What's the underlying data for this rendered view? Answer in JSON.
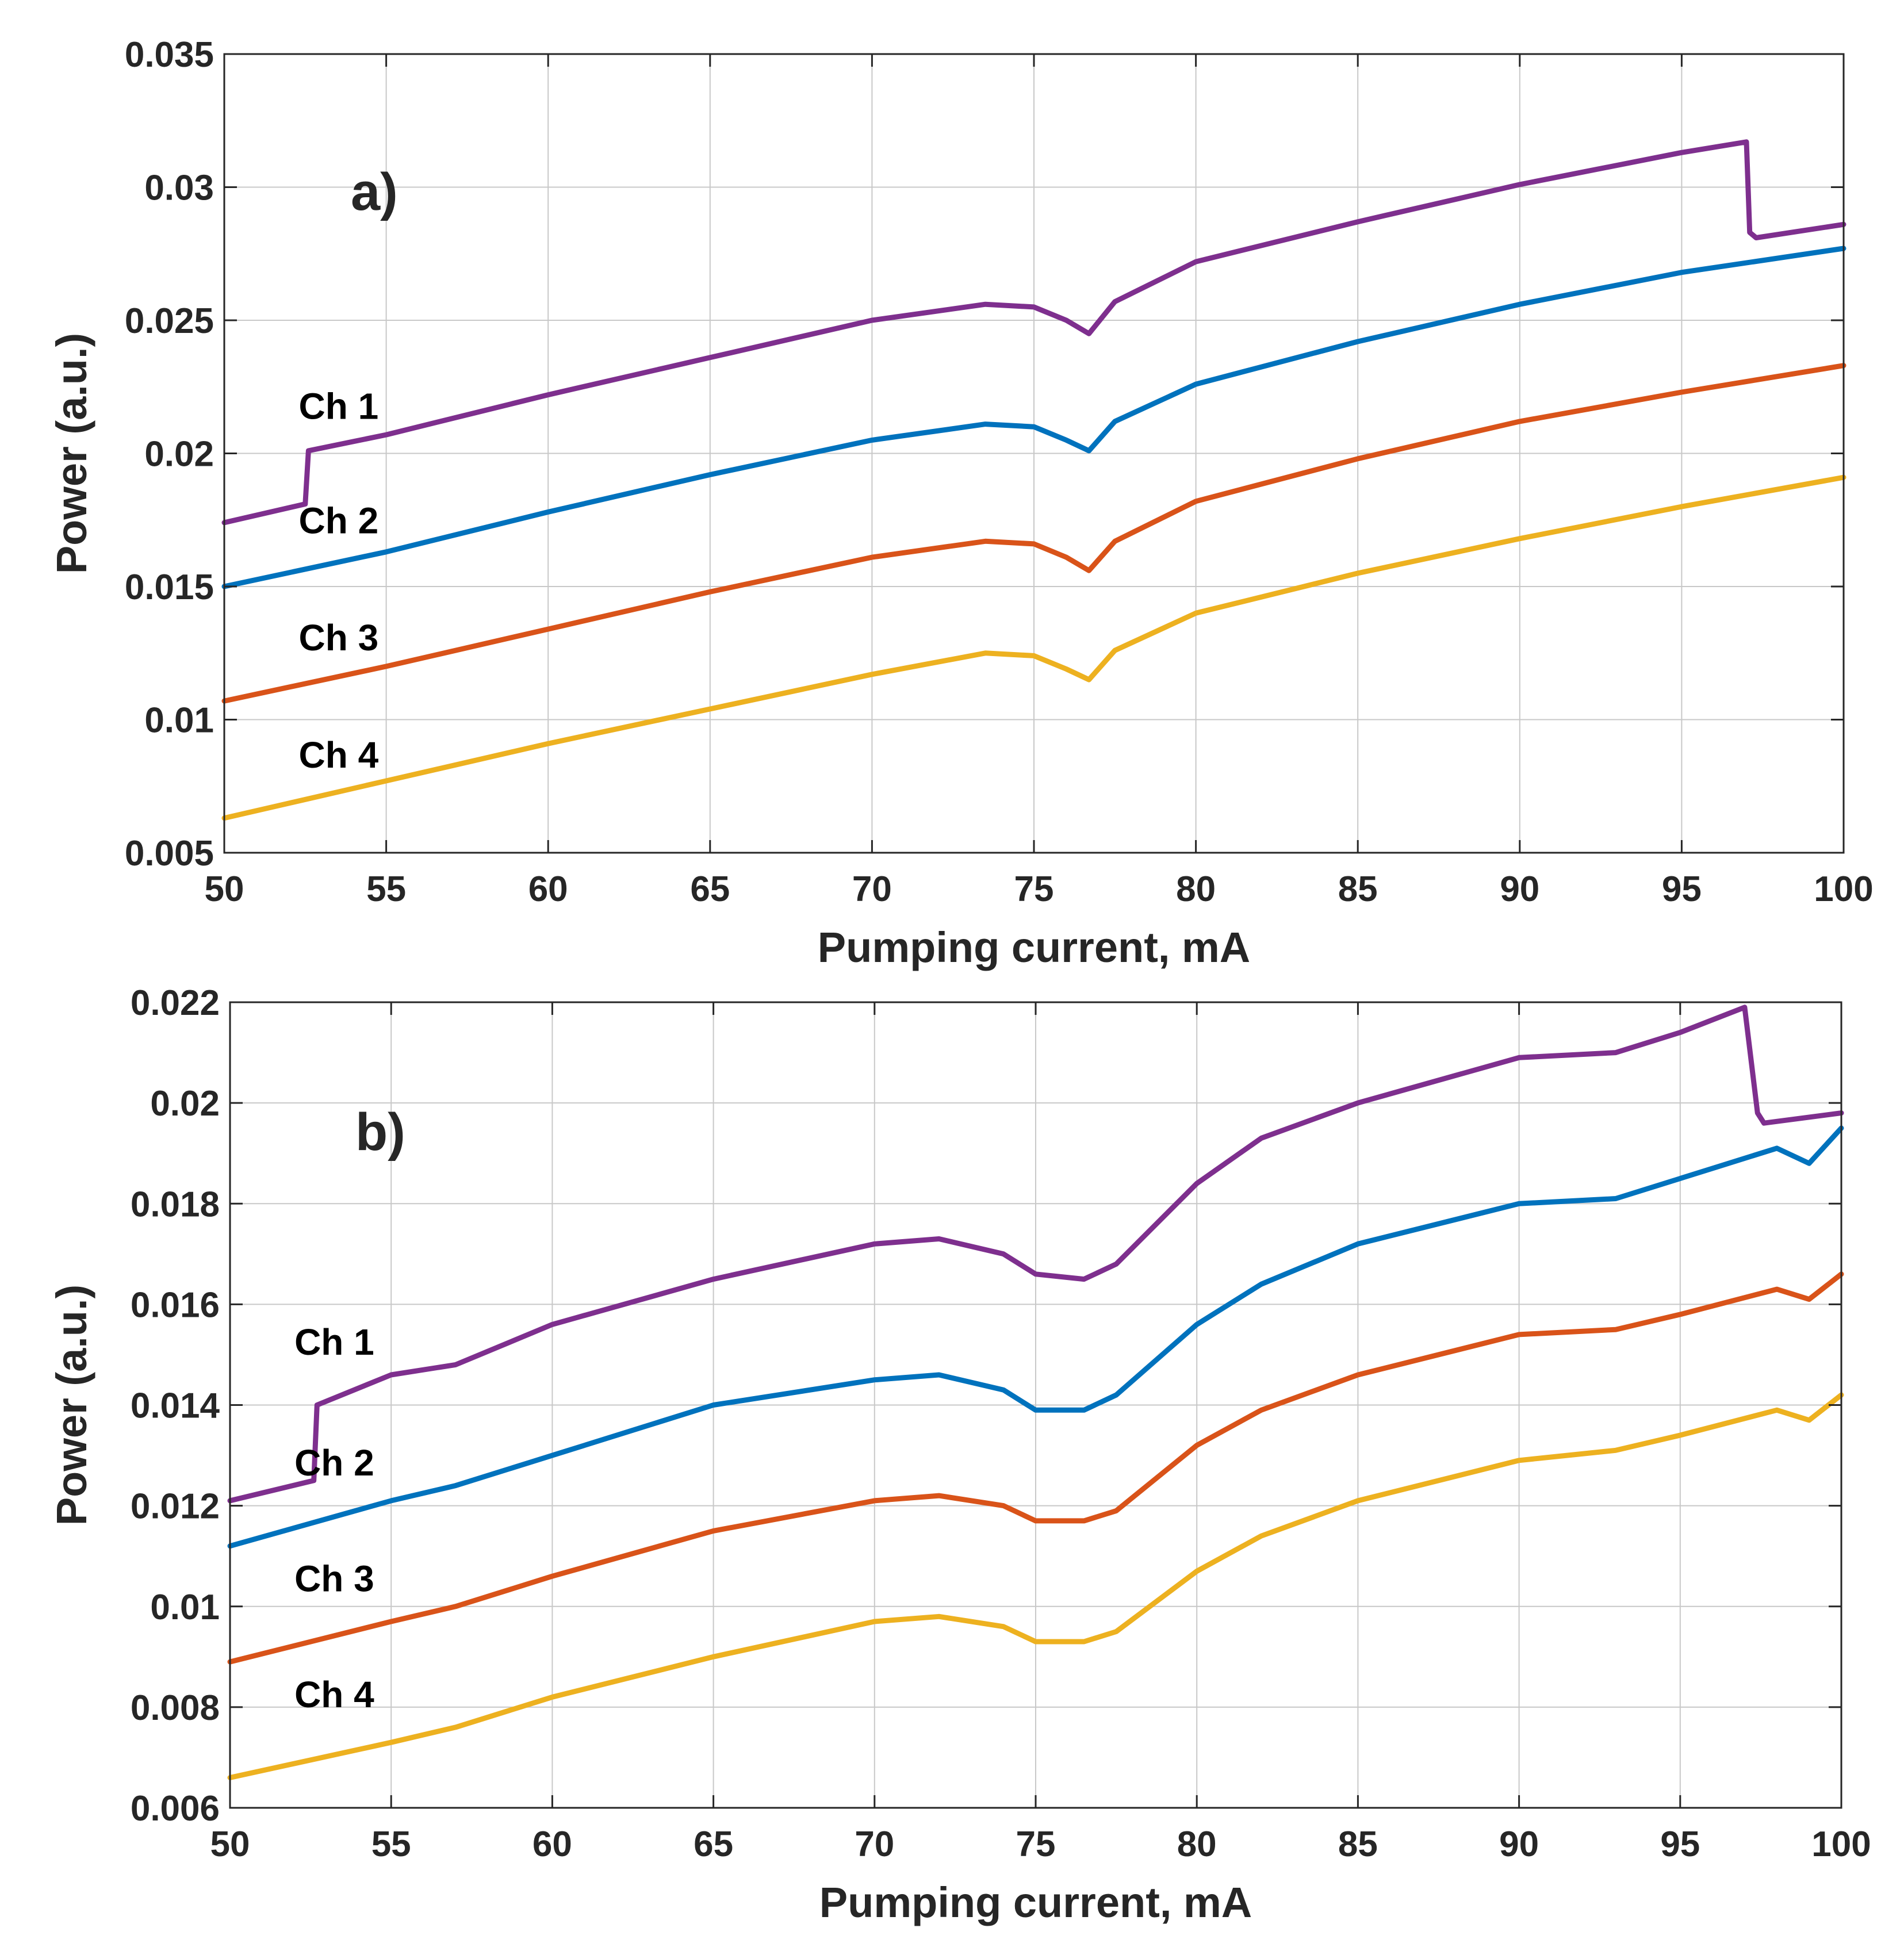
{
  "chart_data": [
    {
      "type": "line",
      "panel_label": "a)",
      "xlabel": "Pumping current, mA",
      "ylabel": "Power (a.u.)",
      "xlim": [
        50,
        100
      ],
      "ylim": [
        0.005,
        0.035
      ],
      "grid": true,
      "xticks": [
        50,
        55,
        60,
        65,
        70,
        75,
        80,
        85,
        90,
        95,
        100
      ],
      "xtick_labels": [
        "50",
        "55",
        "60",
        "65",
        "70",
        "75",
        "80",
        "85",
        "90",
        "95",
        "100"
      ],
      "yticks": [
        0.005,
        0.01,
        0.015,
        0.02,
        0.025,
        0.03,
        0.035
      ],
      "ytick_labels": [
        "0.005",
        "0.01",
        "0.015",
        "0.02",
        "0.025",
        "0.03",
        "0.035"
      ],
      "series": [
        {
          "name": "Ch 1",
          "label_at": [
            52.3,
            0.0213
          ],
          "color": "#7E2F8E",
          "points": [
            [
              50,
              0.0174
            ],
            [
              52.5,
              0.0181
            ],
            [
              52.6,
              0.0201
            ],
            [
              55,
              0.0207
            ],
            [
              60,
              0.0222
            ],
            [
              65,
              0.0236
            ],
            [
              70,
              0.025
            ],
            [
              73.5,
              0.0256
            ],
            [
              75,
              0.0255
            ],
            [
              76,
              0.025
            ],
            [
              76.7,
              0.0245
            ],
            [
              77.5,
              0.0257
            ],
            [
              80,
              0.0272
            ],
            [
              85,
              0.0287
            ],
            [
              90,
              0.0301
            ],
            [
              95,
              0.0313
            ],
            [
              97.0,
              0.0317
            ],
            [
              97.1,
              0.0283
            ],
            [
              97.3,
              0.0281
            ],
            [
              100,
              0.0286
            ]
          ]
        },
        {
          "name": "Ch 2",
          "label_at": [
            52.3,
            0.017
          ],
          "color": "#0072BD",
          "points": [
            [
              50,
              0.015
            ],
            [
              55,
              0.0163
            ],
            [
              60,
              0.0178
            ],
            [
              65,
              0.0192
            ],
            [
              70,
              0.0205
            ],
            [
              73.5,
              0.0211
            ],
            [
              75,
              0.021
            ],
            [
              76,
              0.0205
            ],
            [
              76.7,
              0.0201
            ],
            [
              77.5,
              0.0212
            ],
            [
              80,
              0.0226
            ],
            [
              85,
              0.0242
            ],
            [
              90,
              0.0256
            ],
            [
              95,
              0.0268
            ],
            [
              100,
              0.0277
            ]
          ]
        },
        {
          "name": "Ch 3",
          "label_at": [
            52.3,
            0.0126
          ],
          "color": "#D95319",
          "points": [
            [
              50,
              0.0107
            ],
            [
              55,
              0.012
            ],
            [
              60,
              0.0134
            ],
            [
              65,
              0.0148
            ],
            [
              70,
              0.0161
            ],
            [
              73.5,
              0.0167
            ],
            [
              75,
              0.0166
            ],
            [
              76,
              0.0161
            ],
            [
              76.7,
              0.0156
            ],
            [
              77.5,
              0.0167
            ],
            [
              80,
              0.0182
            ],
            [
              85,
              0.0198
            ],
            [
              90,
              0.0212
            ],
            [
              95,
              0.0223
            ],
            [
              100,
              0.0233
            ]
          ]
        },
        {
          "name": "Ch 4",
          "label_at": [
            52.3,
            0.0082
          ],
          "color": "#EDB120",
          "points": [
            [
              50,
              0.0063
            ],
            [
              55,
              0.0077
            ],
            [
              60,
              0.0091
            ],
            [
              65,
              0.0104
            ],
            [
              70,
              0.0117
            ],
            [
              73.5,
              0.0125
            ],
            [
              75,
              0.0124
            ],
            [
              76,
              0.0119
            ],
            [
              76.7,
              0.0115
            ],
            [
              77.5,
              0.0126
            ],
            [
              80,
              0.014
            ],
            [
              85,
              0.0155
            ],
            [
              90,
              0.0168
            ],
            [
              95,
              0.018
            ],
            [
              100,
              0.0191
            ]
          ]
        }
      ]
    },
    {
      "type": "line",
      "panel_label": "b)",
      "xlabel": "Pumping current, mA",
      "ylabel": "Power (a.u.)",
      "xlim": [
        50,
        100
      ],
      "ylim": [
        0.006,
        0.022
      ],
      "grid": true,
      "xticks": [
        50,
        55,
        60,
        65,
        70,
        75,
        80,
        85,
        90,
        95,
        100
      ],
      "xtick_labels": [
        "50",
        "55",
        "60",
        "65",
        "70",
        "75",
        "80",
        "85",
        "90",
        "95",
        "100"
      ],
      "yticks": [
        0.006,
        0.008,
        0.01,
        0.012,
        0.014,
        0.016,
        0.018,
        0.02,
        0.022
      ],
      "ytick_labels": [
        "0.006",
        "0.008",
        "0.01",
        "0.012",
        "0.014",
        "0.016",
        "0.018",
        "0.02",
        "0.022"
      ],
      "series": [
        {
          "name": "Ch 1",
          "label_at": [
            52.0,
            0.015
          ],
          "color": "#7E2F8E",
          "points": [
            [
              50,
              0.0121
            ],
            [
              52.6,
              0.0125
            ],
            [
              52.7,
              0.014
            ],
            [
              55,
              0.0146
            ],
            [
              57,
              0.0148
            ],
            [
              60,
              0.0156
            ],
            [
              65,
              0.0165
            ],
            [
              70,
              0.0172
            ],
            [
              72,
              0.0173
            ],
            [
              74,
              0.017
            ],
            [
              75,
              0.0166
            ],
            [
              76.5,
              0.0165
            ],
            [
              77.5,
              0.0168
            ],
            [
              80,
              0.0184
            ],
            [
              82,
              0.0193
            ],
            [
              85,
              0.02
            ],
            [
              90,
              0.0209
            ],
            [
              93,
              0.021
            ],
            [
              95,
              0.0214
            ],
            [
              97.0,
              0.0219
            ],
            [
              97.4,
              0.0198
            ],
            [
              97.6,
              0.0196
            ],
            [
              100,
              0.0198
            ]
          ]
        },
        {
          "name": "Ch 2",
          "label_at": [
            52.0,
            0.0126
          ],
          "color": "#0072BD",
          "points": [
            [
              50,
              0.0112
            ],
            [
              55,
              0.0121
            ],
            [
              57,
              0.0124
            ],
            [
              60,
              0.013
            ],
            [
              65,
              0.014
            ],
            [
              70,
              0.0145
            ],
            [
              72,
              0.0146
            ],
            [
              74,
              0.0143
            ],
            [
              75,
              0.0139
            ],
            [
              76.5,
              0.0139
            ],
            [
              77.5,
              0.0142
            ],
            [
              80,
              0.0156
            ],
            [
              82,
              0.0164
            ],
            [
              85,
              0.0172
            ],
            [
              90,
              0.018
            ],
            [
              93,
              0.0181
            ],
            [
              95,
              0.0185
            ],
            [
              98,
              0.0191
            ],
            [
              99,
              0.0188
            ],
            [
              100,
              0.0195
            ]
          ]
        },
        {
          "name": "Ch 3",
          "label_at": [
            52.0,
            0.0103
          ],
          "color": "#D95319",
          "points": [
            [
              50,
              0.0089
            ],
            [
              55,
              0.0097
            ],
            [
              57,
              0.01
            ],
            [
              60,
              0.0106
            ],
            [
              65,
              0.0115
            ],
            [
              70,
              0.0121
            ],
            [
              72,
              0.0122
            ],
            [
              74,
              0.012
            ],
            [
              75,
              0.0117
            ],
            [
              76.5,
              0.0117
            ],
            [
              77.5,
              0.0119
            ],
            [
              80,
              0.0132
            ],
            [
              82,
              0.0139
            ],
            [
              85,
              0.0146
            ],
            [
              90,
              0.0154
            ],
            [
              93,
              0.0155
            ],
            [
              95,
              0.0158
            ],
            [
              98,
              0.0163
            ],
            [
              99,
              0.0161
            ],
            [
              100,
              0.0166
            ]
          ]
        },
        {
          "name": "Ch 4",
          "label_at": [
            52.0,
            0.008
          ],
          "color": "#EDB120",
          "points": [
            [
              50,
              0.0066
            ],
            [
              55,
              0.0073
            ],
            [
              57,
              0.0076
            ],
            [
              60,
              0.0082
            ],
            [
              65,
              0.009
            ],
            [
              70,
              0.0097
            ],
            [
              72,
              0.0098
            ],
            [
              74,
              0.0096
            ],
            [
              75,
              0.0093
            ],
            [
              76.5,
              0.0093
            ],
            [
              77.5,
              0.0095
            ],
            [
              80,
              0.0107
            ],
            [
              82,
              0.0114
            ],
            [
              85,
              0.0121
            ],
            [
              90,
              0.0129
            ],
            [
              93,
              0.0131
            ],
            [
              95,
              0.0134
            ],
            [
              98,
              0.0139
            ],
            [
              99,
              0.0137
            ],
            [
              100,
              0.0142
            ]
          ]
        }
      ]
    }
  ]
}
